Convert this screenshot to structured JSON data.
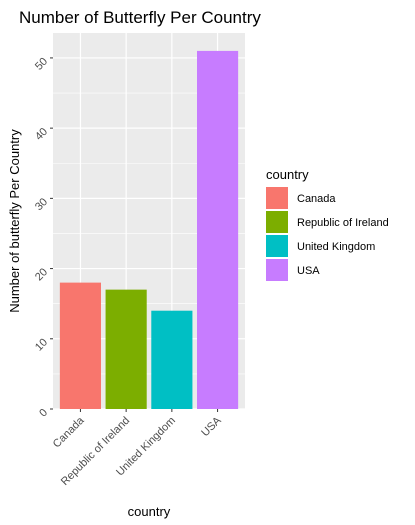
{
  "chart_data": {
    "type": "bar",
    "title": "Number of Butterfly Per Country",
    "xlabel": "country",
    "ylabel": "Number of butterfly Per Country",
    "categories": [
      "Canada",
      "Republic of Ireland",
      "United Kingdom",
      "USA"
    ],
    "values": [
      18,
      17,
      14,
      51
    ],
    "colors": [
      "#f8766d",
      "#7cae00",
      "#00bfc4",
      "#c77cff"
    ],
    "yticks": [
      0,
      10,
      20,
      30,
      40,
      50
    ],
    "ylim": [
      0,
      53.55
    ],
    "grid": true,
    "legend": {
      "title": "country",
      "position": "right",
      "entries": [
        "Canada",
        "Republic of Ireland",
        "United Kingdom",
        "USA"
      ]
    }
  }
}
